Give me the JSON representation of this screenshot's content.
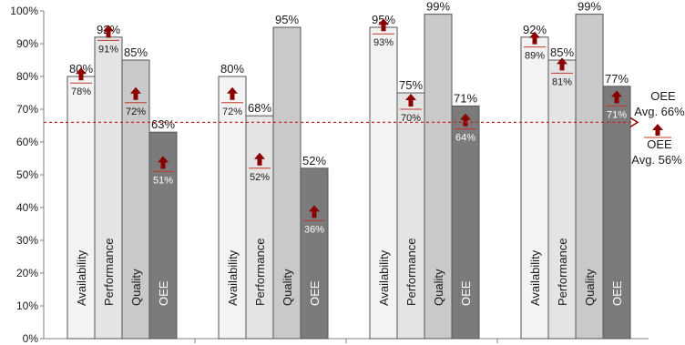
{
  "chart_data": {
    "type": "bar",
    "title": "",
    "xlabel": "",
    "ylabel": "",
    "ylim": [
      0,
      100
    ],
    "yticks": [
      "0%",
      "10%",
      "20%",
      "30%",
      "40%",
      "50%",
      "60%",
      "70%",
      "80%",
      "90%",
      "100%"
    ],
    "categories": [
      "Availability",
      "Performance",
      "Quality",
      "OEE"
    ],
    "groups": [
      {
        "values": [
          80,
          92,
          85,
          63
        ],
        "value_labels": [
          "80%",
          "92%",
          "85%",
          "63%"
        ],
        "previous": [
          78,
          91,
          72,
          51
        ],
        "previous_labels": [
          "78%",
          "91%",
          "72%",
          "51%"
        ]
      },
      {
        "values": [
          80,
          68,
          95,
          52
        ],
        "value_labels": [
          "80%",
          "68%",
          "95%",
          "52%"
        ],
        "previous": [
          72,
          52,
          null,
          36
        ],
        "previous_labels": [
          "72%",
          "52%",
          null,
          "36%"
        ]
      },
      {
        "values": [
          95,
          75,
          99,
          71
        ],
        "value_labels": [
          "95%",
          "75%",
          "99%",
          "71%"
        ],
        "previous": [
          93,
          70,
          null,
          64
        ],
        "previous_labels": [
          "93%",
          "70%",
          null,
          "64%"
        ]
      },
      {
        "values": [
          92,
          85,
          99,
          77
        ],
        "value_labels": [
          "92%",
          "85%",
          "99%",
          "77%"
        ],
        "previous": [
          89,
          81,
          null,
          71
        ],
        "previous_labels": [
          "89%",
          "81%",
          null,
          "71%"
        ]
      }
    ],
    "bar_colors": [
      "#f3f3f3",
      "#e4e4e4",
      "#c9c9c9",
      "#7b7b7b"
    ],
    "arrow_color": "#8b0000",
    "reference_line": {
      "value": 66,
      "color": "#cc2222",
      "style": "dashed"
    },
    "annotations": [
      {
        "lines": [
          "OEE",
          "Avg. 66%"
        ]
      },
      {
        "lines": [
          "OEE",
          "Avg. 56%"
        ]
      }
    ]
  }
}
